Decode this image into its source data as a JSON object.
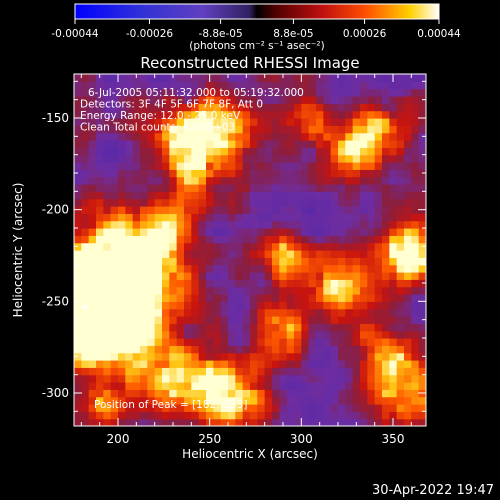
{
  "chart_data": {
    "type": "heatmap",
    "title": "Reconstructed RHESSI Image",
    "xlabel": "Heliocentric X (arcsec)",
    "ylabel": "Heliocentric Y (arcsec)",
    "xlim": [
      176,
      368
    ],
    "ylim": [
      -318,
      -126
    ],
    "x_ticks": [
      "200",
      "250",
      "300",
      "350"
    ],
    "x_tick_values": [
      200,
      250,
      300,
      350
    ],
    "y_ticks": [
      "-150",
      "-200",
      "-250",
      "-300"
    ],
    "y_tick_values": [
      -150,
      -200,
      -250,
      -300
    ],
    "colorbar": {
      "range": [
        -0.00044,
        0.00044
      ],
      "tick_labels": [
        "-0.00044",
        "-0.00026",
        "-8.8e-05",
        "8.8e-05",
        "0.00026",
        "0.00044"
      ],
      "tick_values": [
        -0.00044,
        -0.00026,
        -8.8e-05,
        8.8e-05,
        0.00026,
        0.00044
      ],
      "unit_label": "(photons cm⁻² s⁻¹ asec⁻²)"
    },
    "annotations": [
      "6-Jul-2005 05:11:32.000 to 05:19:32.000",
      "Detectors: 3F 4F 5F 6F 7F 8F, Att 0",
      "Energy Range: 12.0 - 25.0 keV",
      "Clean     Total counts: 6.03E+03"
    ],
    "peak_label": "Position of Peak = [182,-253]",
    "peak_position": [
      182,
      -253
    ],
    "sources": [
      {
        "x": 182,
        "y": -253,
        "intensity": 1.0,
        "radius": 18
      },
      {
        "x": 195,
        "y": -240,
        "intensity": 0.85,
        "radius": 22
      },
      {
        "x": 205,
        "y": -265,
        "intensity": 0.7,
        "radius": 16
      },
      {
        "x": 215,
        "y": -230,
        "intensity": 0.6,
        "radius": 14
      },
      {
        "x": 255,
        "y": -160,
        "intensity": 0.75,
        "radius": 14
      },
      {
        "x": 233,
        "y": -160,
        "intensity": 0.55,
        "radius": 12
      },
      {
        "x": 240,
        "y": -180,
        "intensity": 0.45,
        "radius": 10
      },
      {
        "x": 260,
        "y": -300,
        "intensity": 0.8,
        "radius": 14
      },
      {
        "x": 232,
        "y": -292,
        "intensity": 0.6,
        "radius": 12
      },
      {
        "x": 288,
        "y": -225,
        "intensity": 0.6,
        "radius": 10
      },
      {
        "x": 320,
        "y": -242,
        "intensity": 0.65,
        "radius": 12
      },
      {
        "x": 360,
        "y": -225,
        "intensity": 0.8,
        "radius": 12
      },
      {
        "x": 342,
        "y": -158,
        "intensity": 0.55,
        "radius": 14
      },
      {
        "x": 325,
        "y": -170,
        "intensity": 0.45,
        "radius": 12
      },
      {
        "x": 300,
        "y": -150,
        "intensity": 0.4,
        "radius": 10
      },
      {
        "x": 355,
        "y": -300,
        "intensity": 0.55,
        "radius": 14
      },
      {
        "x": 200,
        "y": -205,
        "intensity": 0.35,
        "radius": 10
      },
      {
        "x": 290,
        "y": -265,
        "intensity": 0.5,
        "radius": 12
      },
      {
        "x": 345,
        "y": -280,
        "intensity": 0.45,
        "radius": 12
      },
      {
        "x": 230,
        "y": -210,
        "intensity": 0.4,
        "radius": 10
      },
      {
        "x": 190,
        "y": -305,
        "intensity": 0.45,
        "radius": 10
      }
    ]
  },
  "footer": {
    "date": "30-Apr-2022 19:47"
  },
  "colors": {
    "background": "#000000",
    "text": "#ffffff"
  }
}
